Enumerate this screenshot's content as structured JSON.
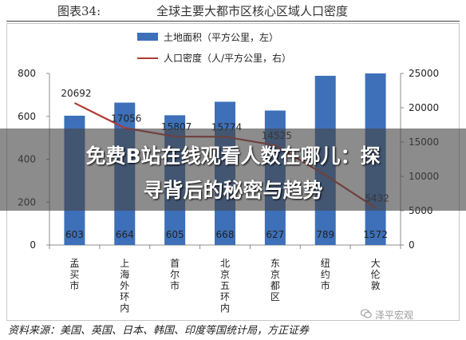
{
  "header": {
    "figure_label": "图表34:",
    "title": "全球主要大都市区核心区域人口密度"
  },
  "banner": {
    "line1": "免费B站在线观看人数在哪儿：探",
    "line2": "寻背后的秘密与趋势"
  },
  "source_note": "资料来源：美国、英国、日本、韩国、印度等国统计局，方正证券",
  "watermark": "泽平宏观",
  "colors": {
    "bar": "#3d70b8",
    "line": "#b03a32",
    "axis": "#8c8c8c",
    "text": "#222222"
  },
  "chart_data": {
    "type": "bar+line",
    "title": "全球主要大都市区核心区域人口密度",
    "categories": [
      "孟买市",
      "上海外环内",
      "首尔市",
      "北京五环内",
      "东京都区",
      "纽约市",
      "大伦敦"
    ],
    "series": [
      {
        "name": "土地面积（平方公里，左）",
        "type": "bar",
        "axis": "left",
        "values": [
          603,
          664,
          605,
          668,
          627,
          789,
          1572
        ],
        "data_labels": [
          "603",
          "664",
          "605",
          "668",
          "627",
          "789",
          "1572"
        ]
      },
      {
        "name": "人口密度（人/平方公里，右）",
        "type": "line",
        "axis": "right",
        "values": [
          20692,
          17056,
          15807,
          15774,
          14525,
          10200,
          5432
        ],
        "data_labels": [
          "20692",
          "17056",
          "15807",
          "15774",
          "14525",
          "",
          "5432"
        ]
      }
    ],
    "y_left": {
      "min": 0,
      "max": 800,
      "ticks": [
        0,
        200,
        400,
        600,
        800
      ]
    },
    "y_right": {
      "min": 0,
      "max": 25000,
      "ticks": [
        0,
        5000,
        10000,
        15000,
        20000,
        25000
      ]
    },
    "legend_position": "top-center",
    "grid": false
  }
}
